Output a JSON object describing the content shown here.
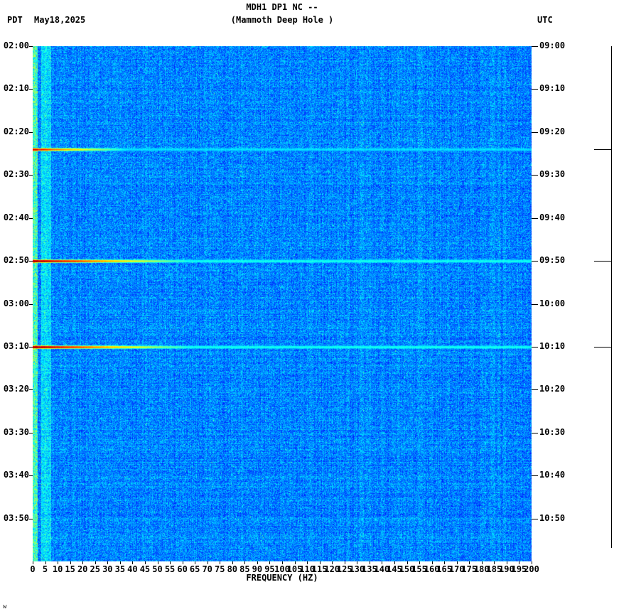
{
  "header": {
    "title_line1": "MDH1 DP1 NC --",
    "title_line2": "(Mammoth Deep Hole )",
    "left_tz": "PDT",
    "date": "May18,2025",
    "right_tz": "UTC"
  },
  "axes": {
    "left_ticks": [
      "02:00",
      "02:10",
      "02:20",
      "02:30",
      "02:40",
      "02:50",
      "03:00",
      "03:10",
      "03:20",
      "03:30",
      "03:40",
      "03:50"
    ],
    "right_ticks": [
      "09:00",
      "09:10",
      "09:20",
      "09:30",
      "09:40",
      "09:50",
      "10:00",
      "10:10",
      "10:20",
      "10:30",
      "10:40",
      "10:50"
    ],
    "freq_ticks": [
      "0",
      "5",
      "10",
      "15",
      "20",
      "25",
      "30",
      "35",
      "40",
      "45",
      "50",
      "55",
      "60",
      "65",
      "70",
      "75",
      "80",
      "85",
      "90",
      "95",
      "100",
      "105",
      "110",
      "115",
      "120",
      "125",
      "130",
      "135",
      "140",
      "145",
      "150",
      "155",
      "160",
      "165",
      "170",
      "175",
      "180",
      "185",
      "190",
      "195",
      "200"
    ],
    "xlabel": "FREQUENCY (HZ)"
  },
  "footnote": "w",
  "chart_data": {
    "type": "heatmap",
    "title": "MDH1 DP1 NC -- (Mammoth Deep Hole )",
    "xlabel": "FREQUENCY (HZ)",
    "x_range_hz": [
      0,
      200
    ],
    "x_tick_step_hz": 5,
    "time_start_pdt": "02:00",
    "time_end_pdt": "04:00",
    "time_start_utc": "09:00",
    "time_end_utc": "11:00",
    "time_tick_interval_min": 10,
    "colormap": "jet",
    "background": "broadband blue noise (low power) across 0-200 Hz",
    "features": {
      "low_freq_energy_band_hz": [
        0,
        7
      ],
      "faint_vertical_line_hz": 60
    },
    "events": [
      {
        "pdt": "02:24",
        "utc": "09:24",
        "minutes_from_start": 24,
        "strength": "moderate",
        "description": "horizontal broadband burst, red at low freq fading to cyan by ~40 Hz, visible to 200 Hz"
      },
      {
        "pdt": "02:50",
        "utc": "09:50",
        "minutes_from_start": 50,
        "strength": "strong",
        "description": "horizontal broadband burst, dark red to ~15 Hz, yellow to ~45 Hz, cyan to 200 Hz"
      },
      {
        "pdt": "03:10",
        "utc": "10:10",
        "minutes_from_start": 70,
        "strength": "strong",
        "description": "horizontal broadband burst, dark red to ~15 Hz, yellow to ~45 Hz, cyan to 200 Hz"
      }
    ],
    "scale_bar_ticks_at_events": true
  }
}
